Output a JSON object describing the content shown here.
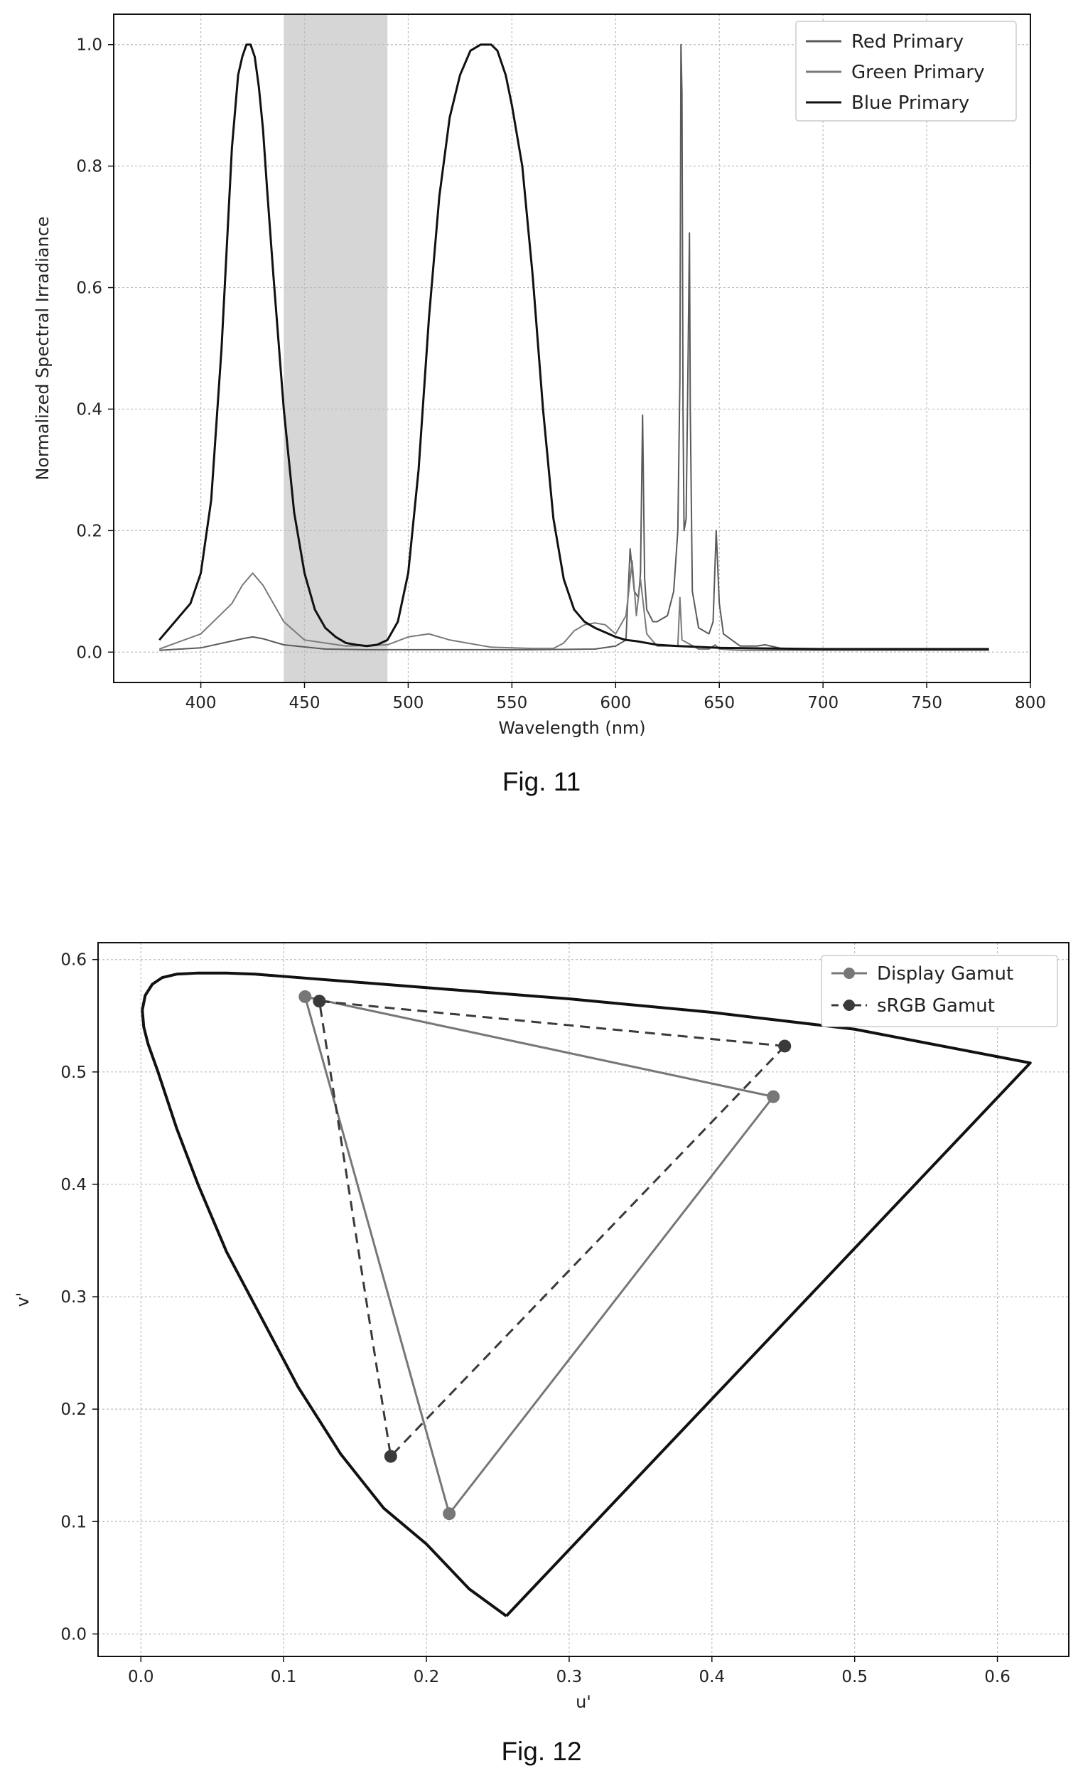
{
  "figures": [
    {
      "caption": "Fig. 11",
      "chart_data": {
        "type": "line",
        "xlabel": "Wavelength (nm)",
        "ylabel": "Normalized Spectral Irradiance",
        "xlim": [
          358,
          800
        ],
        "ylim": [
          -0.05,
          1.05
        ],
        "xticks": [
          400,
          450,
          500,
          550,
          600,
          650,
          700,
          750,
          800
        ],
        "yticks": [
          0.0,
          0.2,
          0.4,
          0.6,
          0.8,
          1.0
        ],
        "grid": true,
        "legend_position": "top-right",
        "shaded_band": [
          440,
          490
        ],
        "series": [
          {
            "name": "Red Primary",
            "color": "#5a5a5a",
            "width": 2,
            "x": [
              380,
              400,
              420,
              425,
              430,
              440,
              460,
              480,
              500,
              560,
              590,
              600,
              605,
              607,
              609,
              611,
              612,
              613,
              614,
              615,
              618,
              620,
              625,
              628,
              630,
              631,
              631.5,
              632,
              632.5,
              633,
              634,
              635,
              635.6,
              636,
              637,
              640,
              645,
              647,
              648.5,
              650,
              652,
              660,
              668,
              672,
              680,
              700,
              750,
              780
            ],
            "y": [
              0.003,
              0.007,
              0.022,
              0.025,
              0.022,
              0.012,
              0.005,
              0.004,
              0.004,
              0.004,
              0.005,
              0.01,
              0.02,
              0.17,
              0.1,
              0.09,
              0.13,
              0.39,
              0.12,
              0.07,
              0.05,
              0.05,
              0.06,
              0.1,
              0.2,
              0.45,
              1.0,
              0.92,
              0.4,
              0.2,
              0.22,
              0.5,
              0.69,
              0.4,
              0.1,
              0.04,
              0.03,
              0.05,
              0.2,
              0.08,
              0.03,
              0.01,
              0.01,
              0.012,
              0.006,
              0.004,
              0.004,
              0.004
            ]
          },
          {
            "name": "Green Primary",
            "color": "#7a7a7a",
            "width": 2,
            "x": [
              380,
              400,
              415,
              420,
              425,
              430,
              440,
              450,
              470,
              490,
              500,
              510,
              520,
              540,
              560,
              570,
              575,
              580,
              585,
              590,
              595,
              600,
              605,
              608,
              610,
              612,
              615,
              620,
              630,
              631,
              632,
              640,
              645,
              648,
              650,
              660,
              700,
              780
            ],
            "y": [
              0.005,
              0.03,
              0.08,
              0.11,
              0.13,
              0.11,
              0.05,
              0.02,
              0.01,
              0.012,
              0.025,
              0.03,
              0.02,
              0.008,
              0.006,
              0.006,
              0.015,
              0.035,
              0.045,
              0.048,
              0.045,
              0.03,
              0.06,
              0.15,
              0.06,
              0.12,
              0.03,
              0.01,
              0.01,
              0.09,
              0.02,
              0.005,
              0.005,
              0.012,
              0.005,
              0.003,
              0.003,
              0.003
            ]
          },
          {
            "name": "Blue Primary",
            "color": "#111111",
            "width": 3,
            "x": [
              380,
              385,
              390,
              395,
              400,
              405,
              410,
              415,
              418,
              420,
              422,
              424,
              426,
              428,
              430,
              432,
              435,
              440,
              445,
              450,
              455,
              460,
              465,
              470,
              475,
              480,
              485,
              490,
              495,
              500,
              505,
              510,
              515,
              520,
              525,
              530,
              535,
              540,
              543,
              547,
              550,
              555,
              560,
              565,
              570,
              575,
              580,
              585,
              590,
              600,
              605,
              610,
              615,
              620,
              630,
              650,
              700,
              780
            ],
            "y": [
              0.02,
              0.04,
              0.06,
              0.08,
              0.13,
              0.25,
              0.5,
              0.83,
              0.95,
              0.98,
              1.0,
              1.0,
              0.98,
              0.93,
              0.86,
              0.76,
              0.62,
              0.4,
              0.23,
              0.13,
              0.07,
              0.04,
              0.025,
              0.015,
              0.012,
              0.01,
              0.012,
              0.02,
              0.05,
              0.13,
              0.3,
              0.55,
              0.75,
              0.88,
              0.95,
              0.99,
              1.0,
              1.0,
              0.99,
              0.95,
              0.9,
              0.8,
              0.62,
              0.4,
              0.22,
              0.12,
              0.07,
              0.05,
              0.04,
              0.025,
              0.02,
              0.018,
              0.015,
              0.012,
              0.01,
              0.007,
              0.005,
              0.005
            ]
          }
        ]
      }
    },
    {
      "caption": "Fig. 12",
      "chart_data": {
        "type": "line",
        "xlabel": "u'",
        "ylabel": "v'",
        "xlim": [
          -0.03,
          0.65
        ],
        "ylim": [
          -0.02,
          0.615
        ],
        "xticks": [
          0.0,
          0.1,
          0.2,
          0.3,
          0.4,
          0.5,
          0.6
        ],
        "yticks": [
          0.0,
          0.1,
          0.2,
          0.3,
          0.4,
          0.5,
          0.6
        ],
        "grid": true,
        "legend_position": "top-right",
        "locus": {
          "color": "#111111",
          "u": [
            0.256,
            0.23,
            0.2,
            0.17,
            0.14,
            0.11,
            0.085,
            0.06,
            0.04,
            0.025,
            0.012,
            0.005,
            0.002,
            0.001,
            0.003,
            0.008,
            0.015,
            0.025,
            0.04,
            0.06,
            0.08,
            0.1,
            0.15,
            0.2,
            0.3,
            0.4,
            0.5,
            0.623,
            0.256
          ],
          "v": [
            0.016,
            0.04,
            0.08,
            0.112,
            0.16,
            0.22,
            0.28,
            0.34,
            0.4,
            0.45,
            0.5,
            0.525,
            0.54,
            0.555,
            0.568,
            0.578,
            0.584,
            0.587,
            0.588,
            0.588,
            0.587,
            0.585,
            0.58,
            0.575,
            0.565,
            0.553,
            0.538,
            0.508,
            0.016
          ]
        },
        "series": [
          {
            "name": "Display Gamut",
            "color": "#777777",
            "dashed": false,
            "u": [
              0.443,
              0.216,
              0.115,
              0.443
            ],
            "v": [
              0.478,
              0.107,
              0.567,
              0.478
            ]
          },
          {
            "name": "sRGB Gamut",
            "color": "#3a3a3a",
            "dashed": true,
            "u": [
              0.451,
              0.175,
              0.125,
              0.451
            ],
            "v": [
              0.523,
              0.158,
              0.563,
              0.523
            ]
          }
        ]
      }
    }
  ]
}
